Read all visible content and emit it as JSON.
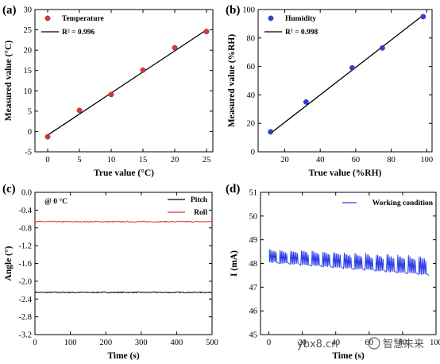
{
  "watermark": {
    "site": "ybx8.cn",
    "brand": "智慧未来"
  },
  "chart_data": [
    {
      "panel": "(a)",
      "type": "scatter",
      "xlabel": "True value (°C)",
      "ylabel": "Measured value (°C)",
      "xlim": [
        -2,
        26
      ],
      "ylim": [
        -5,
        30
      ],
      "xticks": [
        0,
        5,
        10,
        15,
        20,
        25
      ],
      "xtick_labels": [
        "0",
        "5",
        "10",
        "15",
        "20",
        "25"
      ],
      "yticks": [
        -5,
        0,
        5,
        10,
        15,
        20,
        25,
        30
      ],
      "ytick_labels": [
        "-5",
        "0",
        "5",
        "10",
        "15",
        "20",
        "25",
        "30"
      ],
      "legend_position": "top-left",
      "color": "#e8322e",
      "series": [
        {
          "name": "Temperature",
          "kind": "points",
          "x": [
            0,
            5,
            10,
            15,
            20,
            25
          ],
          "y": [
            -1.3,
            5.2,
            9.1,
            15.1,
            20.6,
            24.6
          ]
        },
        {
          "name": "R² = 0.996",
          "kind": "fit-line",
          "x": [
            0,
            25
          ],
          "y": [
            -0.9,
            25.0
          ]
        }
      ]
    },
    {
      "panel": "(b)",
      "type": "scatter",
      "xlabel": "True value (%RH)",
      "ylabel": "Measured value (%RH)",
      "xlim": [
        5,
        103
      ],
      "ylim": [
        0,
        100
      ],
      "xticks": [
        20,
        40,
        60,
        80,
        100
      ],
      "xtick_labels": [
        "20",
        "40",
        "60",
        "80",
        "100"
      ],
      "yticks": [
        0,
        20,
        40,
        60,
        80,
        100
      ],
      "ytick_labels": [
        "0",
        "20",
        "40",
        "60",
        "80",
        "100"
      ],
      "legend_position": "top-left",
      "color": "#2d3ee6",
      "series": [
        {
          "name": "Humidity",
          "kind": "points",
          "x": [
            12,
            32,
            58,
            75,
            98
          ],
          "y": [
            14,
            35,
            59,
            73,
            95
          ]
        },
        {
          "name": "R² = 0.998",
          "kind": "fit-line",
          "x": [
            12,
            98
          ],
          "y": [
            13,
            96
          ]
        }
      ]
    },
    {
      "panel": "(c)",
      "type": "line",
      "xlabel": "Time (s)",
      "ylabel": "Angle (°)",
      "annotation": "@ 0 °C",
      "xlim": [
        0,
        500
      ],
      "ylim": [
        -3.2,
        0.0
      ],
      "xticks": [
        0,
        100,
        200,
        300,
        400,
        500
      ],
      "xtick_labels": [
        "0",
        "100",
        "200",
        "300",
        "400",
        "500"
      ],
      "yticks": [
        -3.2,
        -2.8,
        -2.4,
        -2.0,
        -1.6,
        -1.2,
        -0.8,
        -0.4,
        0.0
      ],
      "ytick_labels": [
        "-3.2",
        "-2.8",
        "-2.4",
        "-2.0",
        "-1.6",
        "-1.2",
        "-0.8",
        "-0.4",
        "0.0"
      ],
      "legend_position": "top-right",
      "series": [
        {
          "name": "Pitch",
          "color": "#000000",
          "x_range": [
            0,
            500
          ],
          "mean": -2.25,
          "noise": 0.012
        },
        {
          "name": "Roll",
          "color": "#e8322e",
          "x_range": [
            0,
            500
          ],
          "mean": -0.66,
          "noise": 0.012
        }
      ]
    },
    {
      "panel": "(d)",
      "type": "line",
      "xlabel": "Time (s)",
      "ylabel": "I (mA)",
      "xlim": [
        -5,
        100
      ],
      "ylim": [
        45,
        51
      ],
      "xticks": [
        0,
        20,
        40,
        60,
        80,
        100
      ],
      "xtick_labels": [
        "0",
        "20",
        "40",
        "60",
        "80",
        "100"
      ],
      "yticks": [
        45,
        46,
        47,
        48,
        49,
        50,
        51
      ],
      "ytick_labels": [
        "45",
        "46",
        "47",
        "48",
        "49",
        "50",
        "51"
      ],
      "legend_position": "top-right",
      "series": [
        {
          "name": "Working condition",
          "color": "#2d3ee6",
          "x_range": [
            0,
            96
          ],
          "baseline_start": 48.2,
          "baseline_end": 47.7,
          "peak_start": 48.6,
          "peak_end": 48.3,
          "cycles": 15
        }
      ]
    }
  ]
}
